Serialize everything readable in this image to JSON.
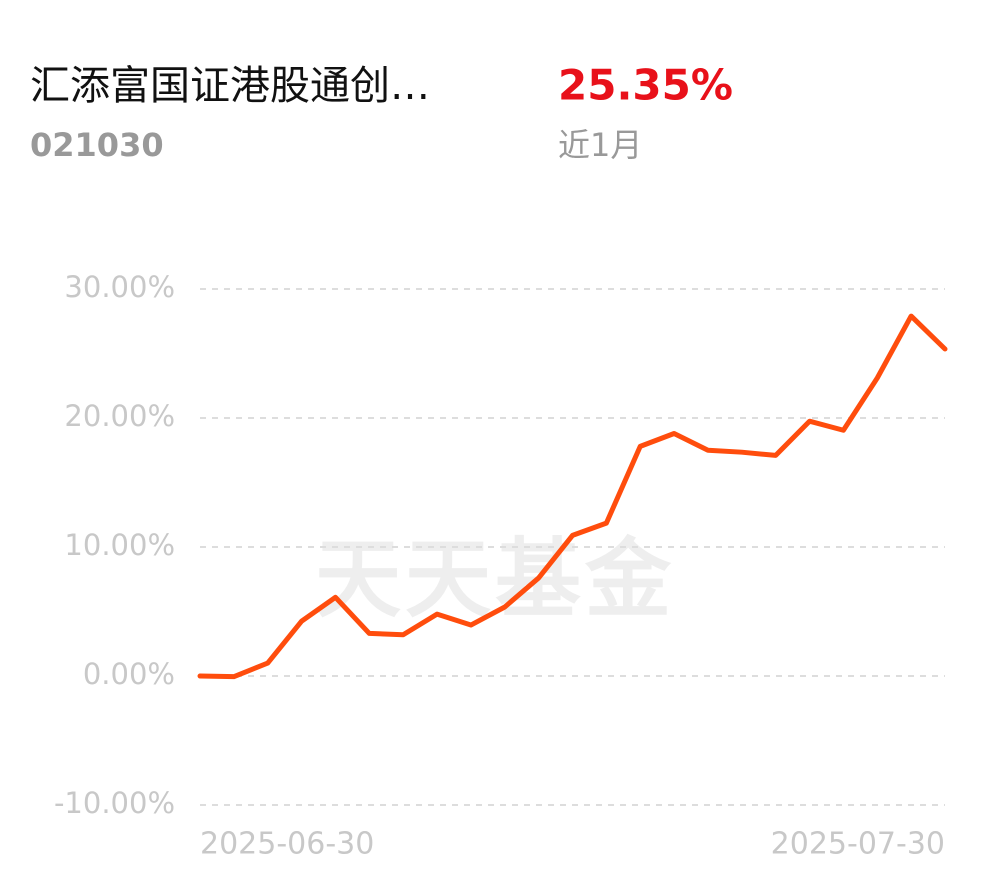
{
  "chart_data": {
    "type": "line",
    "title": "汇添富国证港股通创…",
    "code": "021030",
    "return": "25.35%",
    "period": "近1月",
    "watermark": "天天基金",
    "categories": [
      "2025-06-30",
      null,
      null,
      null,
      null,
      null,
      null,
      null,
      null,
      null,
      null,
      null,
      null,
      null,
      null,
      null,
      null,
      null,
      null,
      null,
      null,
      null,
      "2025-07-30"
    ],
    "series": [
      {
        "color": "#ff4d0d",
        "values": [
          0.0,
          -0.05,
          1.0,
          4.25,
          6.1,
          3.3,
          3.2,
          4.8,
          3.95,
          5.35,
          7.6,
          10.9,
          11.85,
          17.8,
          18.8,
          17.5,
          17.35,
          17.1,
          19.75,
          19.05,
          23.1,
          27.9,
          25.35
        ]
      }
    ],
    "ylim": [
      -10,
      30
    ],
    "yticks": [
      {
        "value": -10,
        "label": "-10.00%"
      },
      {
        "value": 0,
        "label": "0.00%"
      },
      {
        "value": 10,
        "label": "10.00%"
      },
      {
        "value": 20,
        "label": "20.00%"
      },
      {
        "value": 30,
        "label": "30.00%"
      }
    ],
    "grid": true
  }
}
